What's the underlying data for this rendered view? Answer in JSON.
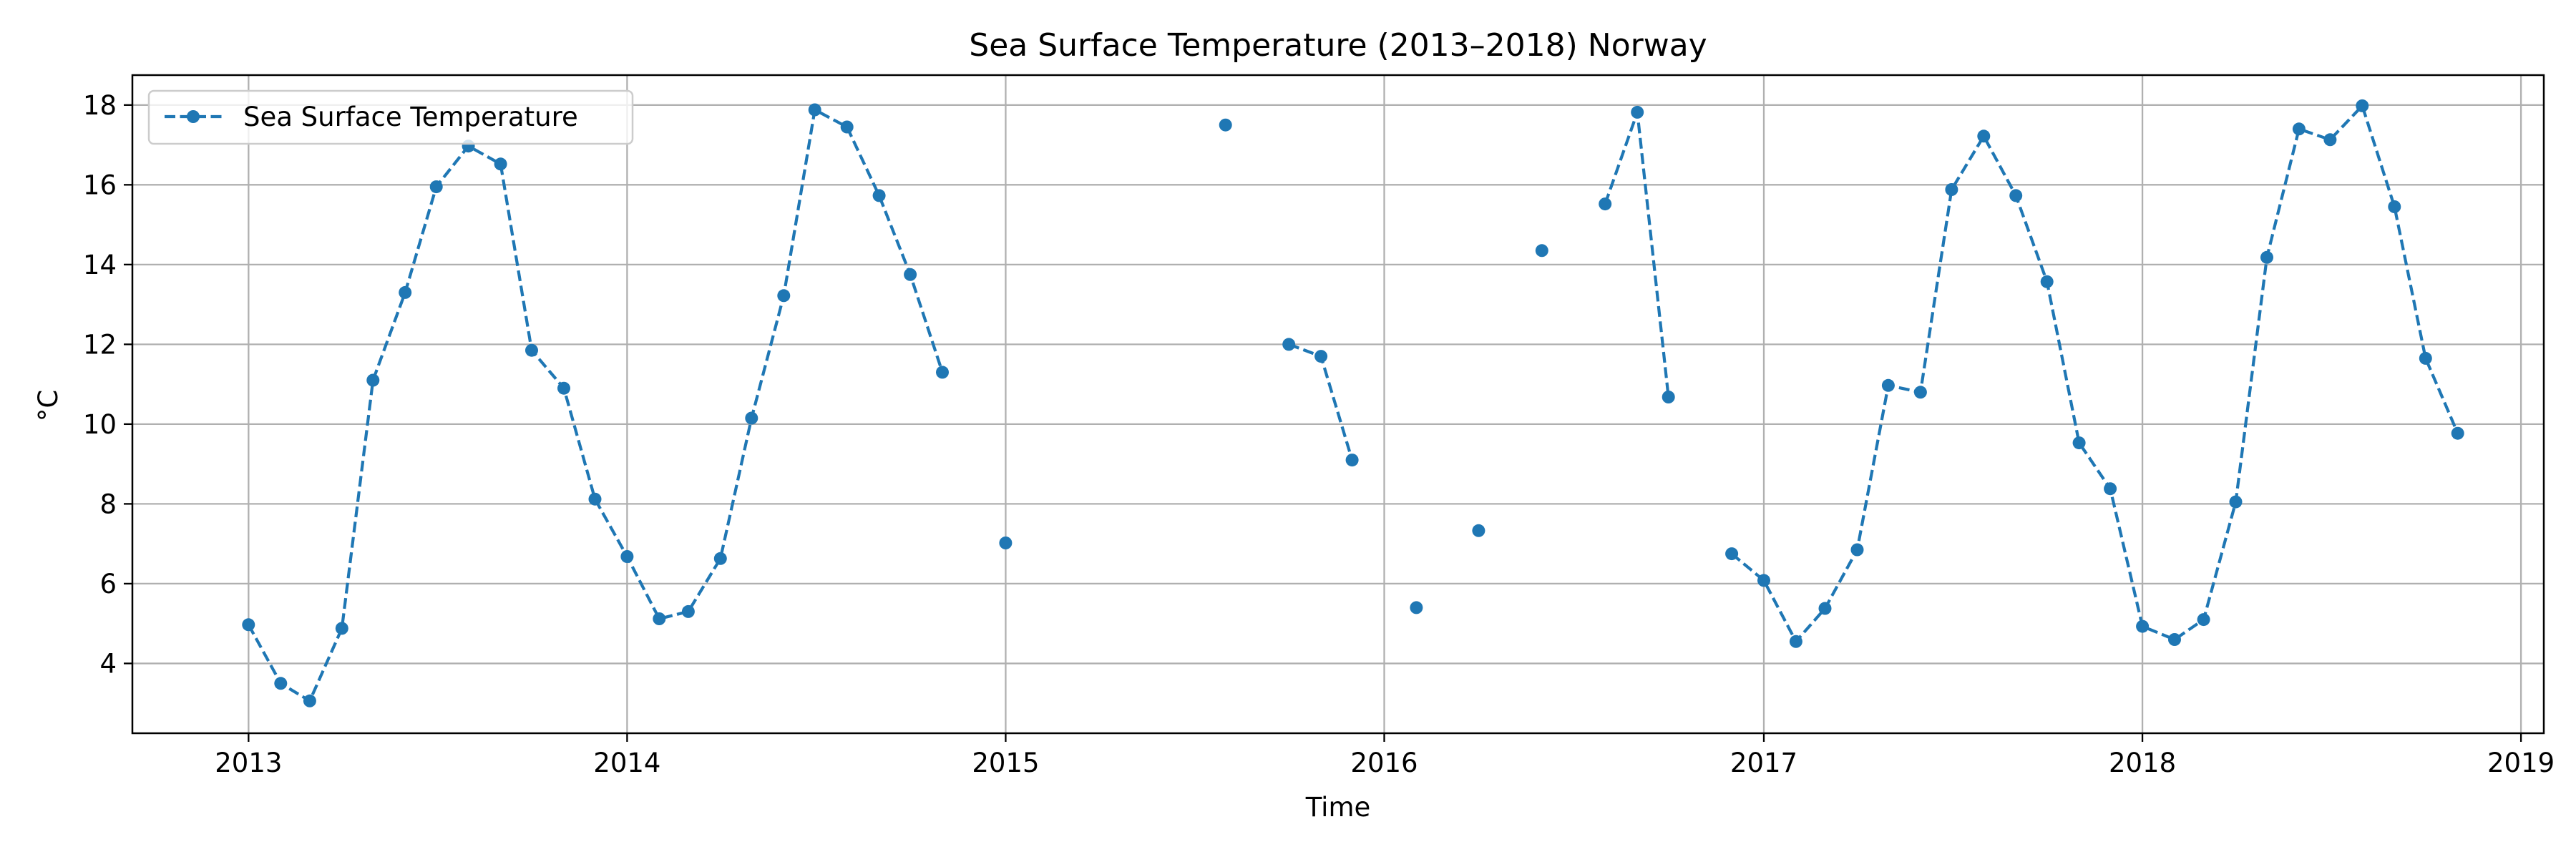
{
  "chart_data": {
    "type": "line",
    "title": "Sea Surface Temperature (2013–2018) Norway",
    "xlabel": "Time",
    "ylabel": "°C",
    "x_axis": {
      "scale": "date",
      "range": [
        "2012-09-11",
        "2019-01-23"
      ],
      "ticks": [
        "2013-01-01",
        "2014-01-01",
        "2015-01-01",
        "2016-01-01",
        "2017-01-01",
        "2018-01-01",
        "2019-01-01"
      ],
      "tick_labels": [
        "2013",
        "2014",
        "2015",
        "2016",
        "2017",
        "2018",
        "2019"
      ]
    },
    "y_axis": {
      "range": [
        2.25,
        18.75
      ],
      "ticks": [
        4,
        6,
        8,
        10,
        12,
        14,
        16,
        18
      ],
      "tick_labels": [
        "4",
        "6",
        "8",
        "10",
        "12",
        "14",
        "16",
        "18"
      ]
    },
    "grid": true,
    "legend_position": "top-left",
    "colors": {
      "series": "#1f77b4",
      "grid": "#b0b0b0",
      "axes": "#000000"
    },
    "series": [
      {
        "name": "Sea Surface Temperature",
        "line_style": "dashed",
        "marker": "circle",
        "points": [
          {
            "x": "2013-01-01",
            "y": 4.97
          },
          {
            "x": "2013-02-01",
            "y": 3.5
          },
          {
            "x": "2013-03-01",
            "y": 3.06
          },
          {
            "x": "2013-04-01",
            "y": 4.88
          },
          {
            "x": "2013-05-01",
            "y": 11.1
          },
          {
            "x": "2013-06-01",
            "y": 13.3
          },
          {
            "x": "2013-07-01",
            "y": 15.95
          },
          {
            "x": "2013-08-01",
            "y": 16.97
          },
          {
            "x": "2013-09-01",
            "y": 16.52
          },
          {
            "x": "2013-10-01",
            "y": 11.85
          },
          {
            "x": "2013-11-01",
            "y": 10.9
          },
          {
            "x": "2013-12-01",
            "y": 8.12
          },
          {
            "x": "2014-01-01",
            "y": 6.68
          },
          {
            "x": "2014-02-01",
            "y": 5.12
          },
          {
            "x": "2014-03-01",
            "y": 5.3
          },
          {
            "x": "2014-04-01",
            "y": 6.63
          },
          {
            "x": "2014-05-01",
            "y": 10.15
          },
          {
            "x": "2014-06-01",
            "y": 13.22
          },
          {
            "x": "2014-07-01",
            "y": 17.88
          },
          {
            "x": "2014-08-01",
            "y": 17.45
          },
          {
            "x": "2014-09-01",
            "y": 15.73
          },
          {
            "x": "2014-10-01",
            "y": 13.75
          },
          {
            "x": "2014-11-01",
            "y": 11.3
          },
          {
            "x": "2014-12-01",
            "y": null
          },
          {
            "x": "2015-01-01",
            "y": 7.02
          },
          {
            "x": "2015-02-01",
            "y": null
          },
          {
            "x": "2015-03-01",
            "y": null
          },
          {
            "x": "2015-04-01",
            "y": null
          },
          {
            "x": "2015-05-01",
            "y": null
          },
          {
            "x": "2015-06-01",
            "y": null
          },
          {
            "x": "2015-07-01",
            "y": null
          },
          {
            "x": "2015-08-01",
            "y": 17.5
          },
          {
            "x": "2015-09-01",
            "y": null
          },
          {
            "x": "2015-10-01",
            "y": 12.0
          },
          {
            "x": "2015-11-01",
            "y": 11.7
          },
          {
            "x": "2015-12-01",
            "y": 9.1
          },
          {
            "x": "2016-01-01",
            "y": null
          },
          {
            "x": "2016-02-01",
            "y": 5.4
          },
          {
            "x": "2016-03-01",
            "y": null
          },
          {
            "x": "2016-04-01",
            "y": 7.33
          },
          {
            "x": "2016-05-01",
            "y": null
          },
          {
            "x": "2016-06-01",
            "y": 14.35
          },
          {
            "x": "2016-07-01",
            "y": null
          },
          {
            "x": "2016-08-01",
            "y": 15.52
          },
          {
            "x": "2016-09-01",
            "y": 17.82
          },
          {
            "x": "2016-10-01",
            "y": 10.68
          },
          {
            "x": "2016-11-01",
            "y": null
          },
          {
            "x": "2016-12-01",
            "y": 6.75
          },
          {
            "x": "2017-01-01",
            "y": 6.08
          },
          {
            "x": "2017-02-01",
            "y": 4.55
          },
          {
            "x": "2017-03-01",
            "y": 5.38
          },
          {
            "x": "2017-04-01",
            "y": 6.85
          },
          {
            "x": "2017-05-01",
            "y": 10.97
          },
          {
            "x": "2017-06-01",
            "y": 10.8
          },
          {
            "x": "2017-07-01",
            "y": 15.88
          },
          {
            "x": "2017-08-01",
            "y": 17.22
          },
          {
            "x": "2017-09-01",
            "y": 15.73
          },
          {
            "x": "2017-10-01",
            "y": 13.57
          },
          {
            "x": "2017-11-01",
            "y": 9.53
          },
          {
            "x": "2017-12-01",
            "y": 8.38
          },
          {
            "x": "2018-01-01",
            "y": 4.93
          },
          {
            "x": "2018-02-01",
            "y": 4.6
          },
          {
            "x": "2018-03-01",
            "y": 5.1
          },
          {
            "x": "2018-04-01",
            "y": 8.05
          },
          {
            "x": "2018-05-01",
            "y": 14.18
          },
          {
            "x": "2018-06-01",
            "y": 17.4
          },
          {
            "x": "2018-07-01",
            "y": 17.13
          },
          {
            "x": "2018-08-01",
            "y": 17.98
          },
          {
            "x": "2018-09-01",
            "y": 15.45
          },
          {
            "x": "2018-10-01",
            "y": 11.65
          },
          {
            "x": "2018-11-01",
            "y": 9.77
          }
        ]
      }
    ]
  }
}
